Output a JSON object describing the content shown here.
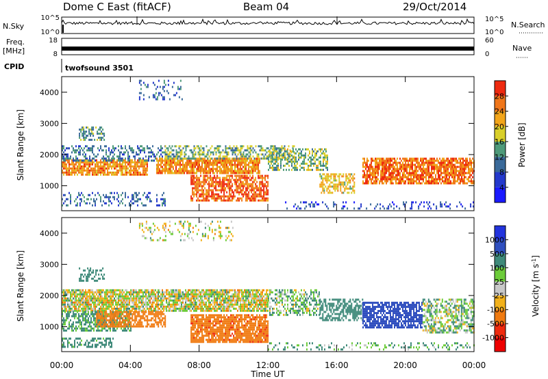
{
  "header": {
    "station": "Dome C East (fitACF)",
    "beam": "Beam 04",
    "date": "29/Oct/2014"
  },
  "top_panels": {
    "nsky": {
      "label": "N.Sky",
      "left_ticks": [
        "10^5",
        "10^0"
      ]
    },
    "nsearch": {
      "label": "N.Search",
      "right_ticks": [
        "10^5",
        "10^0"
      ]
    },
    "freq": {
      "label_line1": "Freq.",
      "label_line2": "[MHz]",
      "left_ticks": [
        "18",
        "8"
      ]
    },
    "nave": {
      "label": "Nave",
      "right_ticks": [
        "60",
        "0"
      ]
    },
    "cpid": {
      "label": "CPID",
      "program": "twofsound 3501"
    }
  },
  "chart_data": [
    {
      "type": "heatmap",
      "panel": "power",
      "ylabel": "Slant Range [km]",
      "yticks": [
        "1000",
        "2000",
        "3000",
        "4000"
      ],
      "ylim": [
        200,
        4500
      ],
      "xlim": [
        0,
        24
      ],
      "colorbar": {
        "label": "Power [dB]",
        "ticks": [
          "4",
          "8",
          "12",
          "16",
          "20",
          "24",
          "28"
        ],
        "range": [
          0,
          32
        ]
      },
      "patches": [
        {
          "t0": 0.0,
          "t1": 5.0,
          "r0": 1350,
          "r1": 1850,
          "v": 24,
          "d": 0.8
        },
        {
          "t0": 0.0,
          "t1": 6.0,
          "r0": 1800,
          "r1": 2300,
          "v": 11,
          "d": 0.4
        },
        {
          "t0": 0.0,
          "t1": 6.0,
          "r0": 400,
          "r1": 800,
          "v": 9,
          "d": 0.3
        },
        {
          "t0": 5.5,
          "t1": 11.5,
          "r0": 1400,
          "r1": 1900,
          "v": 24,
          "d": 0.85
        },
        {
          "t0": 7.5,
          "t1": 12.0,
          "r0": 500,
          "r1": 1350,
          "v": 27,
          "d": 0.7
        },
        {
          "t0": 6.0,
          "t1": 13.5,
          "r0": 1900,
          "r1": 2300,
          "v": 15,
          "d": 0.5
        },
        {
          "t0": 12.0,
          "t1": 15.5,
          "r0": 1500,
          "r1": 2200,
          "v": 16,
          "d": 0.5
        },
        {
          "t0": 15.0,
          "t1": 17.0,
          "r0": 800,
          "r1": 1400,
          "v": 20,
          "d": 0.6
        },
        {
          "t0": 17.5,
          "t1": 24.0,
          "r0": 1100,
          "r1": 1900,
          "v": 26,
          "d": 0.8
        },
        {
          "t0": 13.0,
          "t1": 24.0,
          "r0": 300,
          "r1": 500,
          "v": 7,
          "d": 0.2
        },
        {
          "t0": 4.5,
          "t1": 7.0,
          "r0": 3800,
          "r1": 4400,
          "v": 9,
          "d": 0.2
        },
        {
          "t0": 1.0,
          "t1": 2.5,
          "r0": 2500,
          "r1": 2900,
          "v": 13,
          "d": 0.45
        }
      ]
    },
    {
      "type": "heatmap",
      "panel": "velocity",
      "ylabel": "Slant Range [km]",
      "yticks": [
        "1000",
        "2000",
        "3000",
        "4000"
      ],
      "ylim": [
        200,
        4500
      ],
      "xlim": [
        0,
        24
      ],
      "colorbar": {
        "label": "Velocity [m s",
        "label_sup": "-1",
        "label_end": "]",
        "ticks": [
          "1000",
          "500",
          "100",
          "25",
          "-25",
          "-100",
          "-500",
          "-1000"
        ],
        "colors": [
          "#2233dd",
          "#2f4fbf",
          "#3f8a7a",
          "#6dcc3a",
          "#c8c8c8",
          "#f2b11a",
          "#f07a10",
          "#ef2a0e",
          "#ee0000"
        ]
      },
      "patches": [
        {
          "t0": 0.0,
          "t1": 12.0,
          "r0": 1500,
          "r1": 2200,
          "v": 0,
          "d": 0.85
        },
        {
          "t0": 0.0,
          "t1": 4.0,
          "r0": 900,
          "r1": 1500,
          "v": 150,
          "d": 0.6
        },
        {
          "t0": 0.0,
          "t1": 3.0,
          "r0": 350,
          "r1": 650,
          "v": 200,
          "d": 0.5
        },
        {
          "t0": 2.0,
          "t1": 6.0,
          "r0": 1000,
          "r1": 1500,
          "v": -300,
          "d": 0.7
        },
        {
          "t0": 7.5,
          "t1": 12.0,
          "r0": 500,
          "r1": 1400,
          "v": -400,
          "d": 0.8
        },
        {
          "t0": 12.0,
          "t1": 15.0,
          "r0": 1400,
          "r1": 2200,
          "v": 80,
          "d": 0.5
        },
        {
          "t0": 15.0,
          "t1": 17.5,
          "r0": 1200,
          "r1": 1900,
          "v": 300,
          "d": 0.6
        },
        {
          "t0": 17.5,
          "t1": 21.0,
          "r0": 1000,
          "r1": 1800,
          "v": 800,
          "d": 0.75
        },
        {
          "t0": 21.0,
          "t1": 24.0,
          "r0": 800,
          "r1": 1900,
          "v": 60,
          "d": 0.6
        },
        {
          "t0": 4.5,
          "t1": 10.0,
          "r0": 3800,
          "r1": 4400,
          "v": 10,
          "d": 0.2
        },
        {
          "t0": 1.0,
          "t1": 2.5,
          "r0": 2500,
          "r1": 2900,
          "v": 300,
          "d": 0.4
        },
        {
          "t0": 12.0,
          "t1": 24.0,
          "r0": 300,
          "r1": 500,
          "v": 120,
          "d": 0.2
        }
      ]
    }
  ],
  "xaxis": {
    "label": "Time UT",
    "ticks": [
      "00:00",
      "04:00",
      "08:00",
      "12:00",
      "16:00",
      "20:00",
      "00:00"
    ]
  }
}
